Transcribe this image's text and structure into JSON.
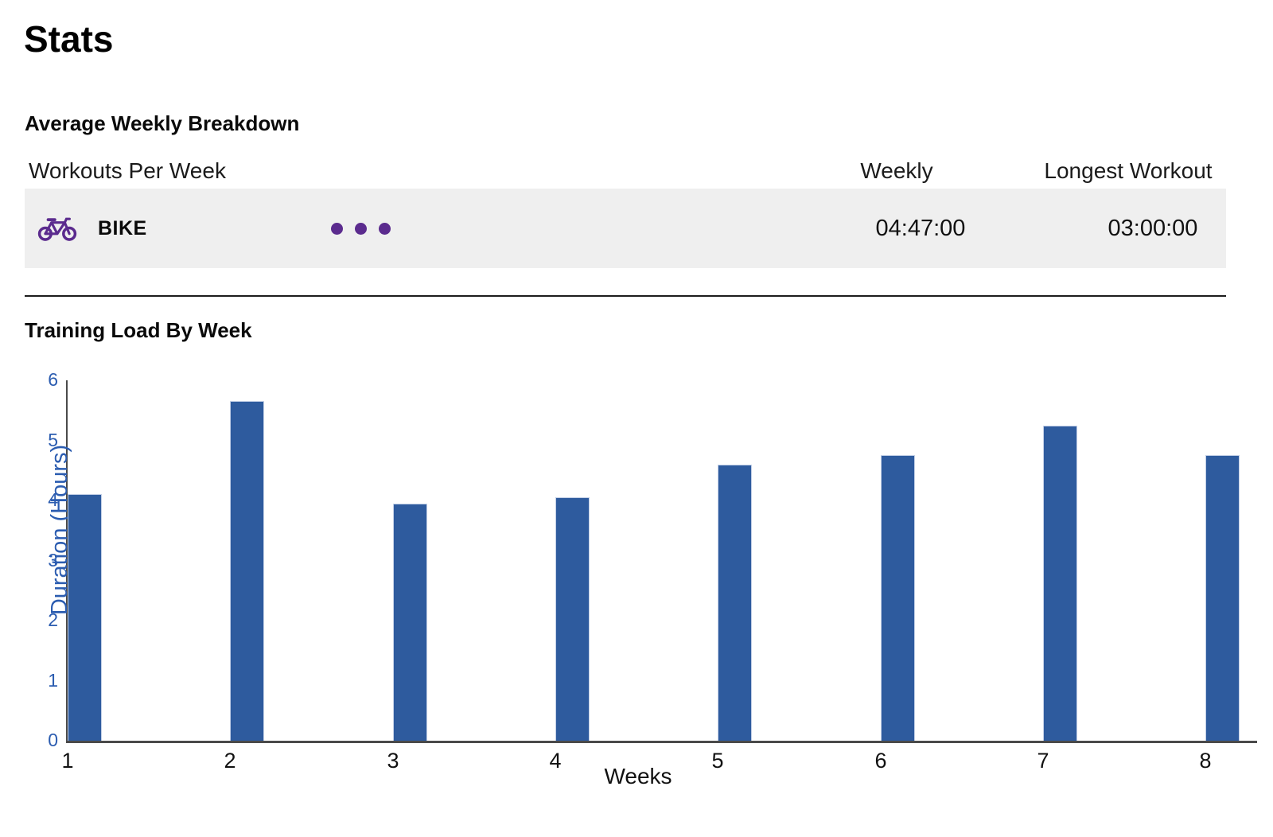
{
  "page": {
    "title": "Stats"
  },
  "breakdown": {
    "heading": "Average Weekly Breakdown",
    "columns": {
      "workouts": "Workouts Per Week",
      "weekly_average": "Weekly Average",
      "longest_workout": "Longest Workout"
    },
    "rows": [
      {
        "activity": "BIKE",
        "icon": "bike-icon",
        "workouts_per_week": 3,
        "weekly_average": "04:47:00",
        "longest_workout": "03:00:00"
      }
    ]
  },
  "chart_section": {
    "heading": "Training Load By Week"
  },
  "chart_data": {
    "type": "bar",
    "title": "Training Load By Week",
    "categories": [
      "1",
      "2",
      "3",
      "4",
      "5",
      "6",
      "7",
      "8"
    ],
    "values": [
      4.1,
      5.65,
      3.95,
      4.05,
      4.6,
      4.75,
      5.25,
      4.75
    ],
    "xlabel": "Weeks",
    "ylabel": "Duration (Hours)",
    "ylim": [
      0,
      6
    ],
    "yticks": [
      0,
      1,
      2,
      3,
      4,
      5,
      6
    ],
    "grid": false,
    "legend": "none",
    "bar_color": "#2e5b9e",
    "axis_text_color": "#2b5cb0",
    "axis_line_color": "#4a4a4a"
  },
  "colors": {
    "accent_purple": "#5b2b8e",
    "row_background": "#efefef",
    "bar_blue": "#2e5b9e",
    "axis_blue": "#2b5cb0"
  }
}
